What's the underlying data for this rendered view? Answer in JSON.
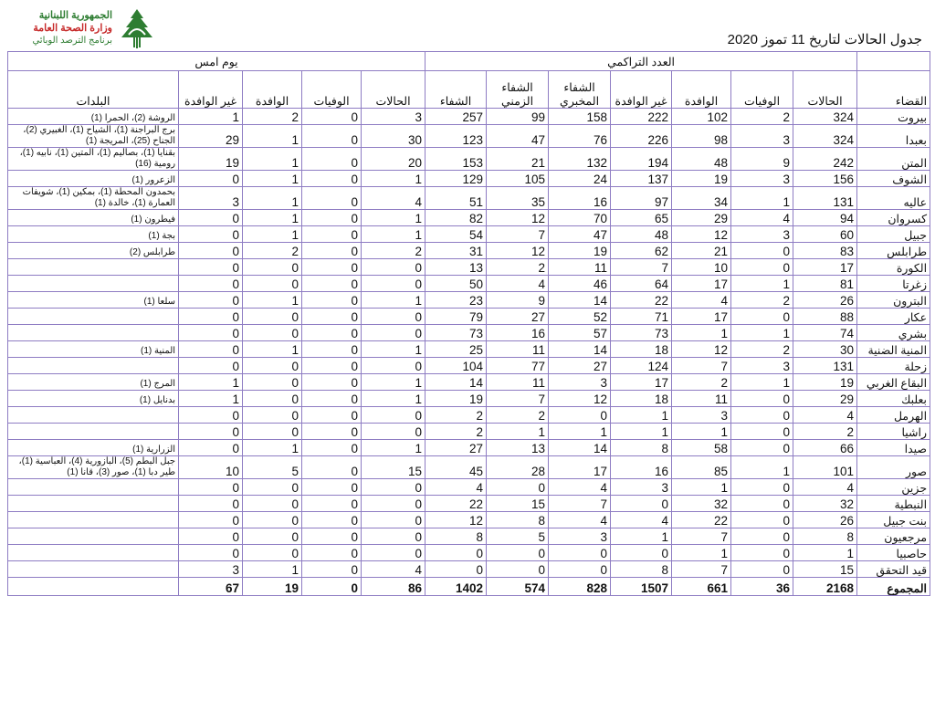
{
  "logo": {
    "line1": "الجمهورية اللبنانية",
    "line2": "وزارة الصحة العامة",
    "line3": "برنامج الترصد الوبائي",
    "icon": "cedar-logo-icon"
  },
  "title": "جدول الحالات لتاريخ 11 تموز 2020",
  "colors": {
    "border": "#8e7cc3"
  },
  "groups": {
    "cumulative": "العدد التراكمي",
    "yesterday": "يوم امس"
  },
  "headers": {
    "district": "القضاء",
    "cases": "الحالات",
    "deaths": "الوفيات",
    "imported": "الوافدة",
    "local": "غير الوافدة",
    "lab_recovery": "الشفاء المخبري",
    "time_recovery": "الشفاء الزمني",
    "recovered": "الشفاء",
    "y_cases": "الحالات",
    "y_deaths": "الوفيات",
    "y_imported": "الوافدة",
    "y_local": "غير الوافدة",
    "towns": "البلدات"
  },
  "rows": [
    {
      "district": "بيروت",
      "v": [
        324,
        2,
        102,
        222,
        158,
        99,
        257
      ],
      "y": [
        3,
        0,
        2,
        1
      ],
      "towns": "الروشة (2)، الحمرا (1)"
    },
    {
      "district": "بعبدا",
      "v": [
        324,
        3,
        98,
        226,
        76,
        47,
        123
      ],
      "y": [
        30,
        0,
        1,
        29
      ],
      "towns": "برج البراجنة (1)، الشياح (1)، الغبيري (2)، الجناح (25)، المريجة (1)"
    },
    {
      "district": "المتن",
      "v": [
        242,
        9,
        48,
        194,
        132,
        21,
        153
      ],
      "y": [
        20,
        0,
        1,
        19
      ],
      "towns": "بقنايا (1)، بصاليم (1)، المتين (1)، نابيه (1)، رومية (16)"
    },
    {
      "district": "الشوف",
      "v": [
        156,
        3,
        19,
        137,
        24,
        105,
        129
      ],
      "y": [
        1,
        0,
        1,
        0
      ],
      "towns": "الزعرور (1)"
    },
    {
      "district": "عاليه",
      "v": [
        131,
        1,
        34,
        97,
        16,
        35,
        51
      ],
      "y": [
        4,
        0,
        1,
        3
      ],
      "towns": "بحمدون المحطة (1)، بمكين (1)، شويفات العمارة (1)، خالدة (1)"
    },
    {
      "district": "كسروان",
      "v": [
        94,
        4,
        29,
        65,
        70,
        12,
        82
      ],
      "y": [
        1,
        0,
        1,
        0
      ],
      "towns": "فيطرون (1)"
    },
    {
      "district": "جبيل",
      "v": [
        60,
        3,
        12,
        48,
        47,
        7,
        54
      ],
      "y": [
        1,
        0,
        1,
        0
      ],
      "towns": "بجة (1)"
    },
    {
      "district": "طرابلس",
      "v": [
        83,
        0,
        21,
        62,
        19,
        12,
        31
      ],
      "y": [
        2,
        0,
        2,
        0
      ],
      "towns": "طرابلس (2)"
    },
    {
      "district": "الكورة",
      "v": [
        17,
        0,
        10,
        7,
        11,
        2,
        13
      ],
      "y": [
        0,
        0,
        0,
        0
      ],
      "towns": ""
    },
    {
      "district": "زغرتا",
      "v": [
        81,
        1,
        17,
        64,
        46,
        4,
        50
      ],
      "y": [
        0,
        0,
        0,
        0
      ],
      "towns": ""
    },
    {
      "district": "البترون",
      "v": [
        26,
        2,
        4,
        22,
        14,
        9,
        23
      ],
      "y": [
        1,
        0,
        1,
        0
      ],
      "towns": "سلعا (1)"
    },
    {
      "district": "عكار",
      "v": [
        88,
        0,
        17,
        71,
        52,
        27,
        79
      ],
      "y": [
        0,
        0,
        0,
        0
      ],
      "towns": ""
    },
    {
      "district": "بشري",
      "v": [
        74,
        1,
        1,
        73,
        57,
        16,
        73
      ],
      "y": [
        0,
        0,
        0,
        0
      ],
      "towns": ""
    },
    {
      "district": "المنية الضنية",
      "v": [
        30,
        2,
        12,
        18,
        14,
        11,
        25
      ],
      "y": [
        1,
        0,
        1,
        0
      ],
      "towns": "المنية (1)"
    },
    {
      "district": "زحلة",
      "v": [
        131,
        3,
        7,
        124,
        27,
        77,
        104
      ],
      "y": [
        0,
        0,
        0,
        0
      ],
      "towns": ""
    },
    {
      "district": "البقاع الغربي",
      "v": [
        19,
        1,
        2,
        17,
        3,
        11,
        14
      ],
      "y": [
        1,
        0,
        0,
        1
      ],
      "towns": "المرج (1)"
    },
    {
      "district": "بعلبك",
      "v": [
        29,
        0,
        11,
        18,
        12,
        7,
        19
      ],
      "y": [
        1,
        0,
        0,
        1
      ],
      "towns": "بدنايل (1)"
    },
    {
      "district": "الهرمل",
      "v": [
        4,
        0,
        3,
        1,
        0,
        2,
        2
      ],
      "y": [
        0,
        0,
        0,
        0
      ],
      "towns": ""
    },
    {
      "district": "راشيا",
      "v": [
        2,
        0,
        1,
        1,
        1,
        1,
        2
      ],
      "y": [
        0,
        0,
        0,
        0
      ],
      "towns": ""
    },
    {
      "district": "صيدا",
      "v": [
        66,
        0,
        58,
        8,
        14,
        13,
        27
      ],
      "y": [
        1,
        0,
        1,
        0
      ],
      "towns": "الزرارية (1)"
    },
    {
      "district": "صور",
      "v": [
        101,
        1,
        85,
        16,
        17,
        28,
        45
      ],
      "y": [
        15,
        0,
        5,
        10
      ],
      "towns": "جبل البطم (5)، البازورية (4)، العباسية (1)، طير دبا (1)، صور (3)، قانا (1)"
    },
    {
      "district": "جزين",
      "v": [
        4,
        0,
        1,
        3,
        4,
        0,
        4
      ],
      "y": [
        0,
        0,
        0,
        0
      ],
      "towns": ""
    },
    {
      "district": "النبطية",
      "v": [
        32,
        0,
        32,
        0,
        7,
        15,
        22
      ],
      "y": [
        0,
        0,
        0,
        0
      ],
      "towns": ""
    },
    {
      "district": "بنت جبيل",
      "v": [
        26,
        0,
        22,
        4,
        4,
        8,
        12
      ],
      "y": [
        0,
        0,
        0,
        0
      ],
      "towns": ""
    },
    {
      "district": "مرجعيون",
      "v": [
        8,
        0,
        7,
        1,
        3,
        5,
        8
      ],
      "y": [
        0,
        0,
        0,
        0
      ],
      "towns": ""
    },
    {
      "district": "حاصبيا",
      "v": [
        1,
        0,
        1,
        0,
        0,
        0,
        0
      ],
      "y": [
        0,
        0,
        0,
        0
      ],
      "towns": ""
    },
    {
      "district": "قيد التحقق",
      "v": [
        15,
        0,
        7,
        8,
        0,
        0,
        0
      ],
      "y": [
        4,
        0,
        1,
        3
      ],
      "towns": ""
    }
  ],
  "total": {
    "district": "المجموع",
    "v": [
      2168,
      36,
      661,
      1507,
      828,
      574,
      1402
    ],
    "y": [
      86,
      0,
      19,
      67
    ],
    "towns": ""
  }
}
